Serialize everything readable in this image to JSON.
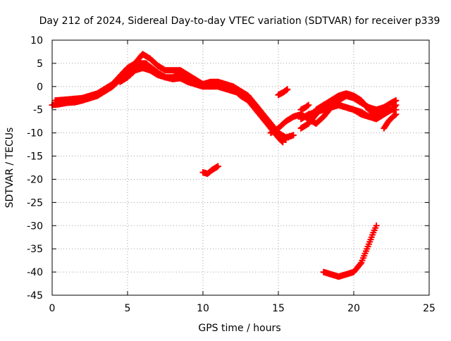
{
  "chart_data": {
    "type": "scatter",
    "title": "Day 212 of 2024, Sidereal Day-to-day VTEC variation (SDTVAR) for receiver p339",
    "xlabel": "GPS time / hours",
    "ylabel": "SDTVAR / TECUs",
    "xlim": [
      0,
      25
    ],
    "ylim": [
      -45,
      10
    ],
    "xticks": [
      0,
      5,
      10,
      15,
      20,
      25
    ],
    "yticks": [
      10,
      5,
      0,
      -5,
      -10,
      -15,
      -20,
      -25,
      -30,
      -35,
      -40,
      -45
    ],
    "grid": true,
    "legend": "none",
    "marker": "plus",
    "series_color": "#ff0000",
    "series": [
      {
        "name": "track-a",
        "points": [
          [
            0,
            -4
          ],
          [
            0.5,
            -3.8
          ],
          [
            1,
            -3.5
          ],
          [
            1.5,
            -3.4
          ],
          [
            2,
            -3
          ],
          [
            2.5,
            -2.5
          ],
          [
            3,
            -2
          ],
          [
            3.5,
            -1
          ],
          [
            4,
            0
          ],
          [
            4.5,
            1.5
          ],
          [
            5,
            3
          ],
          [
            5.4,
            4
          ],
          [
            5.8,
            5
          ],
          [
            6.2,
            5
          ],
          [
            6.6,
            4
          ],
          [
            7,
            3
          ],
          [
            7.5,
            2
          ],
          [
            8,
            1.6
          ],
          [
            8.5,
            1.8
          ],
          [
            9,
            1
          ],
          [
            9.5,
            0.5
          ],
          [
            10,
            0
          ],
          [
            10.5,
            0
          ],
          [
            11,
            0
          ],
          [
            11.5,
            -0.5
          ],
          [
            12,
            -1
          ],
          [
            12.5,
            -1.5
          ],
          [
            13,
            -2.5
          ],
          [
            13.5,
            -4
          ],
          [
            14,
            -6
          ],
          [
            14.5,
            -8
          ],
          [
            15,
            -10
          ],
          [
            15.5,
            -11
          ],
          [
            16,
            -10.5
          ]
        ]
      },
      {
        "name": "track-b",
        "points": [
          [
            0.2,
            -3
          ],
          [
            1,
            -2.8
          ],
          [
            2,
            -2.5
          ],
          [
            3,
            -1.5
          ],
          [
            4,
            0.5
          ],
          [
            5,
            4
          ],
          [
            5.5,
            5
          ],
          [
            6,
            7
          ],
          [
            6.5,
            6
          ],
          [
            7,
            4.5
          ],
          [
            7.5,
            3.5
          ],
          [
            8,
            3.5
          ],
          [
            8.5,
            3.5
          ],
          [
            9,
            2.5
          ],
          [
            9.5,
            1.5
          ],
          [
            10,
            0.5
          ],
          [
            10.5,
            1
          ],
          [
            11,
            1
          ],
          [
            11.5,
            0.5
          ],
          [
            12,
            0
          ],
          [
            12.5,
            -1
          ],
          [
            13,
            -2
          ],
          [
            13.5,
            -4
          ],
          [
            14,
            -6.5
          ],
          [
            14.5,
            -9
          ],
          [
            15,
            -11
          ],
          [
            15.3,
            -12
          ]
        ]
      },
      {
        "name": "track-c",
        "points": [
          [
            4.5,
            1
          ],
          [
            5,
            2
          ],
          [
            5.5,
            3.5
          ],
          [
            6,
            4
          ],
          [
            6.5,
            3.5
          ],
          [
            7,
            2.5
          ],
          [
            7.5,
            2
          ],
          [
            8,
            2
          ],
          [
            8.5,
            2.5
          ],
          [
            9,
            2
          ],
          [
            9.5,
            1
          ],
          [
            10,
            0
          ],
          [
            10.5,
            0.5
          ],
          [
            11,
            0.5
          ],
          [
            11.5,
            0
          ],
          [
            12,
            -0.5
          ],
          [
            12.5,
            -2
          ],
          [
            13,
            -3
          ],
          [
            13.5,
            -5
          ],
          [
            14,
            -7
          ],
          [
            14.5,
            -9
          ],
          [
            15,
            -10.5
          ],
          [
            15.5,
            -11.5
          ]
        ]
      },
      {
        "name": "track-d",
        "points": [
          [
            14.5,
            -10
          ],
          [
            15,
            -9
          ],
          [
            15.5,
            -7.5
          ],
          [
            16,
            -6.5
          ],
          [
            16.5,
            -6
          ],
          [
            17,
            -7
          ],
          [
            17.5,
            -8
          ],
          [
            18,
            -6.5
          ],
          [
            18.5,
            -4.5
          ],
          [
            19,
            -3
          ],
          [
            19.5,
            -2
          ],
          [
            20,
            -2.5
          ],
          [
            20.5,
            -3.5
          ],
          [
            21,
            -4.5
          ],
          [
            21.5,
            -5
          ],
          [
            22,
            -4.5
          ],
          [
            22.5,
            -3.5
          ],
          [
            22.8,
            -3
          ]
        ]
      },
      {
        "name": "track-e",
        "points": [
          [
            16.5,
            -9
          ],
          [
            17,
            -8
          ],
          [
            17.5,
            -6
          ],
          [
            18,
            -4
          ],
          [
            18.5,
            -3
          ],
          [
            19,
            -2
          ],
          [
            19.5,
            -1.5
          ],
          [
            20,
            -2
          ],
          [
            20.5,
            -3
          ],
          [
            21,
            -5
          ],
          [
            21.5,
            -6
          ],
          [
            22,
            -5.5
          ],
          [
            22.5,
            -5
          ],
          [
            22.8,
            -5
          ]
        ]
      },
      {
        "name": "track-f",
        "points": [
          [
            17.5,
            -5
          ],
          [
            18,
            -4
          ],
          [
            18.5,
            -4
          ],
          [
            19,
            -4
          ],
          [
            19.5,
            -4.5
          ],
          [
            20,
            -5
          ],
          [
            20.5,
            -5.5
          ],
          [
            21,
            -6.5
          ],
          [
            21.5,
            -7
          ],
          [
            22,
            -6
          ],
          [
            22.5,
            -5
          ],
          [
            22.8,
            -4
          ]
        ]
      },
      {
        "name": "track-g",
        "points": [
          [
            16.5,
            -7
          ],
          [
            17,
            -6
          ],
          [
            17.5,
            -5.5
          ],
          [
            18,
            -5
          ],
          [
            18.5,
            -4.5
          ],
          [
            19,
            -4
          ],
          [
            19.5,
            -4.5
          ],
          [
            20,
            -5
          ],
          [
            20.5,
            -6
          ],
          [
            21,
            -6.5
          ],
          [
            21.3,
            -6.5
          ]
        ]
      },
      {
        "name": "segment-15h",
        "points": [
          [
            15,
            -1.8
          ],
          [
            15.3,
            -1.3
          ],
          [
            15.6,
            -0.6
          ]
        ]
      },
      {
        "name": "segment-17h",
        "points": [
          [
            16.5,
            -5
          ],
          [
            16.8,
            -4.5
          ],
          [
            17,
            -4
          ]
        ]
      },
      {
        "name": "segment-22h",
        "points": [
          [
            22,
            -9
          ],
          [
            22.3,
            -7.5
          ],
          [
            22.6,
            -6.5
          ],
          [
            22.8,
            -6
          ]
        ]
      },
      {
        "name": "segment-10h",
        "points": [
          [
            10,
            -18.5
          ],
          [
            10.3,
            -18.8
          ],
          [
            10.6,
            -18
          ],
          [
            11,
            -17.2
          ]
        ]
      },
      {
        "name": "segment-18h",
        "points": [
          [
            18,
            -40
          ],
          [
            18.5,
            -40.5
          ],
          [
            19,
            -41
          ],
          [
            19.5,
            -40.5
          ],
          [
            20,
            -40
          ],
          [
            20.5,
            -38
          ],
          [
            21,
            -34
          ],
          [
            21.3,
            -31.5
          ],
          [
            21.5,
            -30
          ]
        ]
      }
    ]
  }
}
